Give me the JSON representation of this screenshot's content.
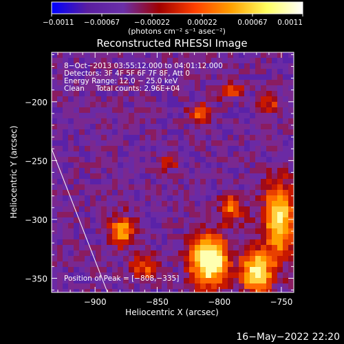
{
  "colorbar": {
    "tick_labels": [
      "-0.0011",
      "-0.00067",
      "-0.00022",
      "0.00022",
      "0.00067",
      "0.0011"
    ],
    "units_label": "(photons cm⁻² s⁻¹ asec⁻²)",
    "colors": [
      "#0000ff",
      "#5a1ea0",
      "#6a2fa8",
      "#a00000",
      "#ff4000",
      "#ffa000",
      "#ffff60",
      "#ffffff"
    ]
  },
  "chart_data": {
    "type": "heatmap",
    "title": "Reconstructed RHESSI Image",
    "xlabel": "Heliocentric X (arcsec)",
    "ylabel": "Heliocentric Y (arcsec)",
    "xlim": [
      -935,
      -740
    ],
    "ylim": [
      -362,
      -158
    ],
    "x_ticks": [
      -900,
      -850,
      -800,
      -750
    ],
    "y_ticks": [
      -200,
      -250,
      -300,
      -350
    ],
    "x_tick_labels": [
      "−900",
      "−850",
      "−800",
      "−750"
    ],
    "y_tick_labels": [
      "−200",
      "−250",
      "−300",
      "−350"
    ],
    "annotations": [
      "8−Oct−2013 03:55:12.000 to 04:01:12.000",
      "Detectors: 3F 4F 5F 6F 7F 8F, Att 0",
      "Energy Range: 12.0 − 25.0 keV",
      "Clean     Total counts: 2.96E+04"
    ],
    "peak_label": "Position of Peak = [−808,−335]",
    "limb_line": [
      [
        -935,
        -240
      ],
      [
        -890,
        -362
      ]
    ],
    "sources": [
      {
        "x": -808,
        "y": -335,
        "sx": 10,
        "sy": 14,
        "amp": 1.0
      },
      {
        "x": -770,
        "y": -345,
        "sx": 8,
        "sy": 12,
        "amp": 0.8
      },
      {
        "x": -752,
        "y": -300,
        "sx": 8,
        "sy": 22,
        "amp": 0.75
      },
      {
        "x": -790,
        "y": -290,
        "sx": 6,
        "sy": 8,
        "amp": 0.45
      },
      {
        "x": -878,
        "y": -310,
        "sx": 7,
        "sy": 8,
        "amp": 0.55
      },
      {
        "x": -860,
        "y": -340,
        "sx": 7,
        "sy": 7,
        "amp": 0.4
      },
      {
        "x": -815,
        "y": -210,
        "sx": 6,
        "sy": 6,
        "amp": 0.38
      },
      {
        "x": -790,
        "y": -190,
        "sx": 6,
        "sy": 5,
        "amp": 0.35
      },
      {
        "x": -760,
        "y": -200,
        "sx": 6,
        "sy": 6,
        "amp": 0.3
      },
      {
        "x": -840,
        "y": -250,
        "sx": 5,
        "sy": 5,
        "amp": 0.28
      }
    ]
  },
  "timestamp": "16−May−2022 22:20"
}
